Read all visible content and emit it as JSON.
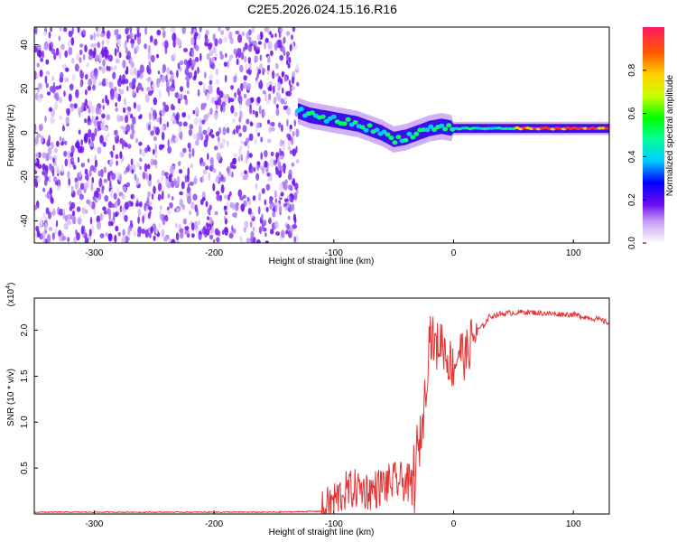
{
  "title": "C2E5.2026.024.15.16.R16",
  "colors": {
    "line": "#e53333",
    "frame": "#000000",
    "dots": "#7a1cf0"
  },
  "chart_data": [
    {
      "type": "heatmap",
      "xlabel": "Height of straight line (km)",
      "ylabel": "Frequency (Hz)",
      "xlim": [
        -350,
        130
      ],
      "ylim": [
        -50,
        48
      ],
      "x_ticks": [
        -300,
        -200,
        -100,
        0,
        100
      ],
      "x_tick_labels": [
        "-300",
        "-200",
        "-100",
        "0",
        "100"
      ],
      "y_ticks": [
        -40,
        -20,
        0,
        20,
        40
      ],
      "y_tick_labels": [
        "-40",
        "-20",
        "0",
        "20",
        "40"
      ],
      "noise_region_x": [
        -350,
        -130
      ],
      "ridge": {
        "x": [
          -130,
          -120,
          -110,
          -100,
          -90,
          -80,
          -70,
          -60,
          -50,
          -40,
          -30,
          -20,
          -10,
          0,
          20,
          40,
          60,
          80,
          100,
          130
        ],
        "y": [
          10,
          8,
          7,
          6,
          5,
          4,
          2,
          0,
          -3,
          -2,
          0,
          2,
          3,
          2,
          2,
          2,
          2,
          2,
          2,
          2
        ]
      },
      "colorbar": {
        "label": "Normalized spectral amplitude",
        "range": [
          0,
          1
        ],
        "ticks": [
          0.0,
          0.2,
          0.4,
          0.6,
          0.8
        ],
        "tick_labels": [
          "0.0",
          "0.2",
          "0.4",
          "0.6",
          "0.8"
        ]
      }
    },
    {
      "type": "line",
      "xlabel": "Height of straight line (km)",
      "ylabel": "SNR (10 * v/v)",
      "y_multiplier": "(x10",
      "y_multiplier_exp": "4",
      "y_multiplier_close": ")",
      "xlim": [
        -350,
        130
      ],
      "ylim": [
        0,
        2.35
      ],
      "x_ticks": [
        -300,
        -200,
        -100,
        0,
        100
      ],
      "x_tick_labels": [
        "-300",
        "-200",
        "-100",
        "0",
        "100"
      ],
      "y_ticks": [
        0.5,
        1.0,
        1.5,
        2.0
      ],
      "y_tick_labels": [
        "0.5",
        "1.0",
        "1.5",
        "2.0"
      ],
      "series": [
        {
          "name": "SNR",
          "x": [
            -350,
            -300,
            -250,
            -200,
            -150,
            -110,
            -100,
            -90,
            -80,
            -70,
            -60,
            -50,
            -40,
            -35,
            -30,
            -25,
            -22,
            -20,
            -15,
            -10,
            -5,
            0,
            5,
            10,
            15,
            20,
            25,
            30,
            40,
            60,
            80,
            100,
            120,
            130
          ],
          "y": [
            0.02,
            0.02,
            0.02,
            0.02,
            0.02,
            0.03,
            0.15,
            0.25,
            0.28,
            0.25,
            0.3,
            0.35,
            0.35,
            0.3,
            0.6,
            1.1,
            1.6,
            2.0,
            1.8,
            1.9,
            1.7,
            1.6,
            1.8,
            1.7,
            1.9,
            2.0,
            2.05,
            2.15,
            2.18,
            2.2,
            2.18,
            2.17,
            2.12,
            2.08
          ]
        }
      ]
    }
  ]
}
